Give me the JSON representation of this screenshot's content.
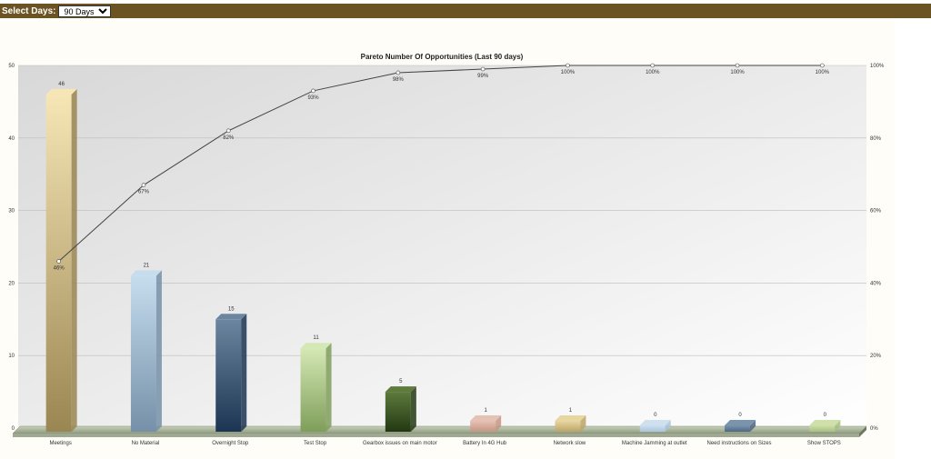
{
  "controls": {
    "select_days_label": "Select Days:",
    "select_days_value": "90 Days"
  },
  "chart_data": {
    "type": "bar",
    "title": "Pareto Number Of Opportunities (Last 90 days)",
    "categories": [
      "Meetings",
      "No Material",
      "Overnight Stop",
      "Test Stop",
      "Gearbox issues on main motor",
      "Battery In 4G Hub",
      "Network slow",
      "Machine Jamming at outlet",
      "Need instructions on Sizes",
      "Show STOPS"
    ],
    "series": [
      {
        "type": "bar",
        "values": [
          46,
          21,
          15,
          11,
          5,
          1,
          1,
          0,
          0,
          0
        ]
      },
      {
        "type": "line",
        "axis": "right",
        "values": [
          46,
          67,
          82,
          93,
          98,
          99,
          100,
          100,
          100,
          100
        ],
        "labels": [
          "46%",
          "67%",
          "82%",
          "93%",
          "98%",
          "99%",
          "100%",
          "100%",
          "100%",
          "100%"
        ]
      }
    ],
    "ylim": [
      0,
      50
    ],
    "yticks": [
      "0",
      "10",
      "20",
      "30",
      "40",
      "50"
    ],
    "y2lim": [
      0,
      100
    ],
    "y2ticks": [
      "0%",
      "20%",
      "40%",
      "60%",
      "80%",
      "100%"
    ],
    "grid": true,
    "bar_colors": [
      [
        "#f6e6b6",
        "#9a8652"
      ],
      [
        "#c6ddee",
        "#7590a8"
      ],
      [
        "#6c86a0",
        "#1b3552"
      ],
      [
        "#d4e8b4",
        "#7f9e5a"
      ],
      [
        "#5e7a3c",
        "#223812"
      ],
      [
        "#e6c2b4",
        "#c49484"
      ],
      [
        "#e8d6a0",
        "#bba468"
      ],
      [
        "#cfe0ee",
        "#a8c4dc"
      ],
      [
        "#7b94ae",
        "#4c6684"
      ],
      [
        "#cfe0aa",
        "#a6c07e"
      ]
    ],
    "line_color": "#444444"
  }
}
